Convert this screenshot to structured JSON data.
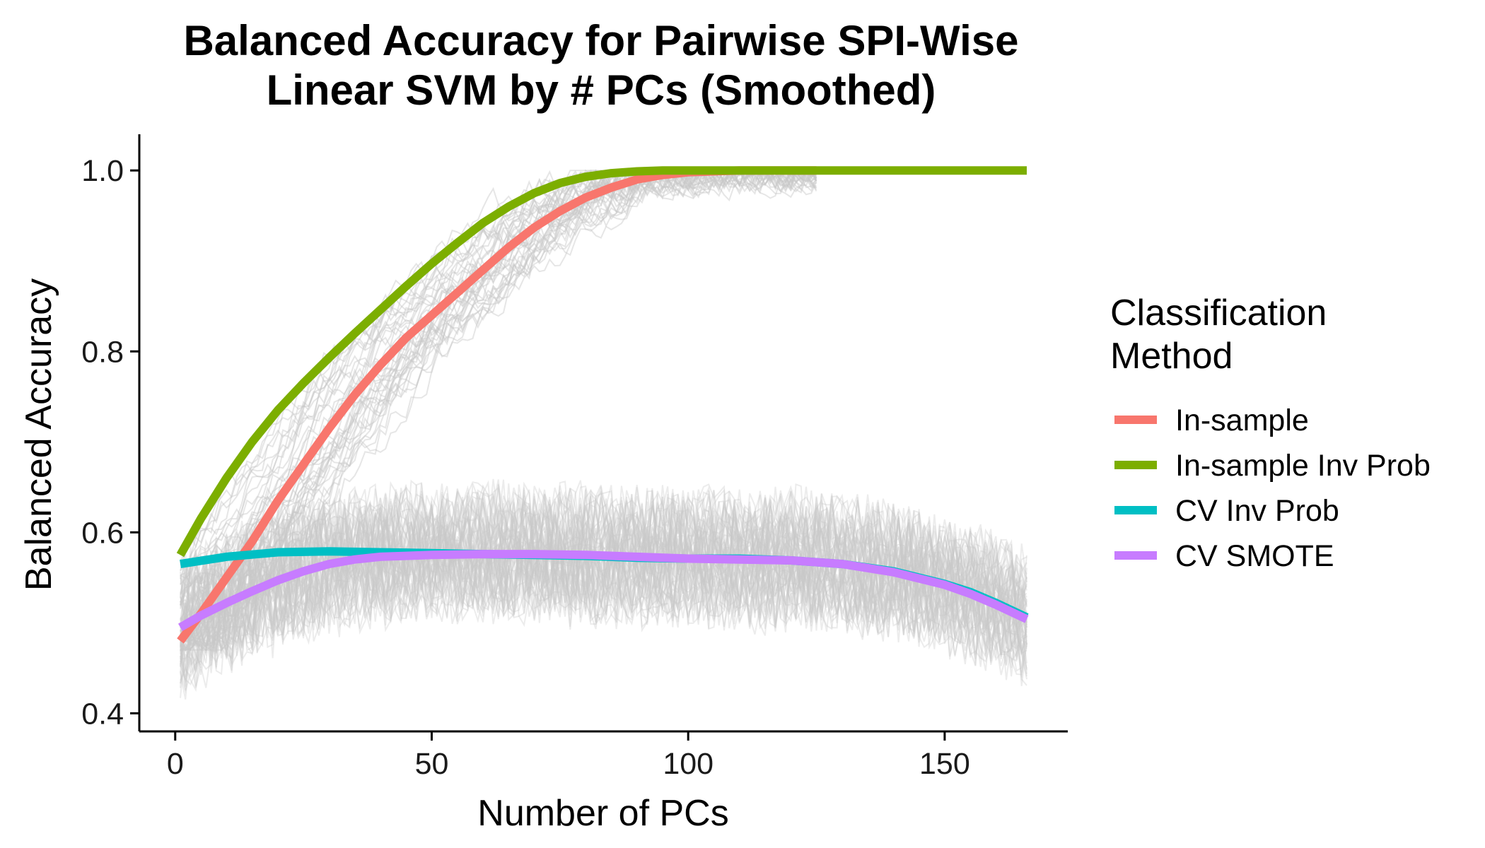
{
  "chart_data": {
    "type": "line",
    "title_lines": [
      "Balanced Accuracy for Pairwise SPI-Wise",
      "Linear SVM by # PCs (Smoothed)"
    ],
    "xlabel": "Number of PCs",
    "ylabel": "Balanced Accuracy",
    "xlim": [
      -7,
      174
    ],
    "ylim": [
      0.38,
      1.04
    ],
    "x_ticks": [
      0,
      50,
      100,
      150
    ],
    "y_ticks": [
      0.4,
      0.6,
      0.8,
      1.0
    ],
    "x_tick_labels": [
      "0",
      "50",
      "100",
      "150"
    ],
    "y_tick_labels": [
      "0.4",
      "0.6",
      "0.8",
      "1.0"
    ],
    "grid": false,
    "legend": {
      "title_lines": [
        "Classification",
        "Method"
      ],
      "placement": "right"
    },
    "background_lines": {
      "color": "#c8c8c8",
      "in_sample_group_count": 40,
      "cv_group_count": 60
    },
    "series": [
      {
        "name": "In-sample",
        "color": "#F8766D",
        "x": [
          1,
          5,
          10,
          15,
          20,
          25,
          30,
          35,
          40,
          45,
          50,
          55,
          60,
          65,
          70,
          75,
          80,
          85,
          90,
          95,
          100,
          105,
          110,
          115,
          120,
          125
        ],
        "y": [
          0.48,
          0.51,
          0.55,
          0.59,
          0.635,
          0.675,
          0.715,
          0.752,
          0.785,
          0.815,
          0.84,
          0.865,
          0.89,
          0.915,
          0.937,
          0.955,
          0.97,
          0.981,
          0.99,
          0.995,
          0.998,
          0.999,
          1.0,
          1.0,
          1.0,
          1.0
        ]
      },
      {
        "name": "In-sample Inv Prob",
        "color": "#7CAE00",
        "x": [
          1,
          5,
          10,
          15,
          20,
          25,
          30,
          35,
          40,
          45,
          50,
          55,
          60,
          65,
          70,
          75,
          80,
          85,
          90,
          95,
          100,
          110,
          120,
          130,
          140,
          150,
          160,
          166
        ],
        "y": [
          0.575,
          0.615,
          0.66,
          0.7,
          0.735,
          0.765,
          0.793,
          0.82,
          0.846,
          0.872,
          0.897,
          0.92,
          0.942,
          0.96,
          0.975,
          0.986,
          0.993,
          0.997,
          0.999,
          1.0,
          1.0,
          1.0,
          1.0,
          1.0,
          1.0,
          1.0,
          1.0,
          1.0
        ]
      },
      {
        "name": "CV Inv Prob",
        "color": "#00BFC4",
        "x": [
          1,
          10,
          20,
          30,
          40,
          50,
          60,
          70,
          80,
          90,
          100,
          110,
          120,
          130,
          140,
          150,
          155,
          160,
          166
        ],
        "y": [
          0.565,
          0.573,
          0.578,
          0.579,
          0.578,
          0.577,
          0.576,
          0.575,
          0.574,
          0.572,
          0.571,
          0.571,
          0.569,
          0.565,
          0.557,
          0.543,
          0.534,
          0.522,
          0.506
        ]
      },
      {
        "name": "CV SMOTE",
        "color": "#C77CFF",
        "x": [
          1,
          5,
          10,
          15,
          20,
          25,
          30,
          35,
          40,
          45,
          50,
          60,
          70,
          80,
          90,
          100,
          110,
          120,
          130,
          140,
          150,
          155,
          160,
          166
        ],
        "y": [
          0.495,
          0.508,
          0.522,
          0.535,
          0.547,
          0.557,
          0.565,
          0.57,
          0.573,
          0.574,
          0.575,
          0.576,
          0.576,
          0.575,
          0.573,
          0.571,
          0.57,
          0.569,
          0.565,
          0.556,
          0.542,
          0.532,
          0.52,
          0.504
        ]
      }
    ]
  }
}
